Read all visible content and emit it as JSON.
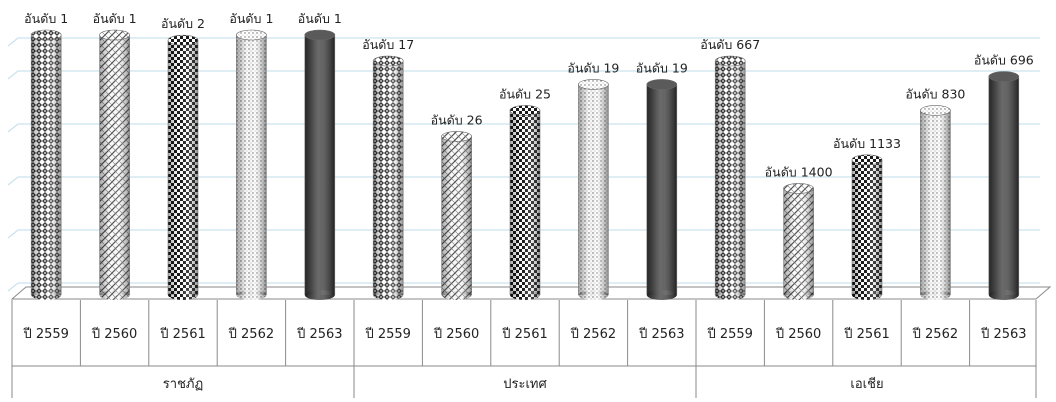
{
  "chart_data": {
    "type": "bar",
    "value_kind": "rank (lower is better; bar height inversely scaled per group)",
    "groups": [
      {
        "name": "ราชภัฏ",
        "categories": [
          "ปี 2559",
          "ปี 2560",
          "ปี 2561",
          "ปี 2562",
          "ปี 2563"
        ],
        "labels": [
          "อันดับ 1",
          "อันดับ 1",
          "อันดับ 2",
          "อันดับ 1",
          "อันดับ 1"
        ],
        "ranks": [
          1,
          1,
          2,
          1,
          1
        ]
      },
      {
        "name": "ประเทศ",
        "categories": [
          "ปี 2559",
          "ปี 2560",
          "ปี 2561",
          "ปี 2562",
          "ปี 2563"
        ],
        "labels": [
          "อันดับ 17",
          "อันดับ 26",
          "อันดับ 25",
          "อันดับ 19",
          "อันดับ 19"
        ],
        "ranks": [
          17,
          26,
          25,
          19,
          19
        ]
      },
      {
        "name": "เอเชีย",
        "categories": [
          "ปี 2559",
          "ปี 2560",
          "ปี 2561",
          "ปี 2562",
          "ปี 2563"
        ],
        "labels": [
          "อันดับ 667",
          "อันดับ 1400",
          "อันดับ 1133",
          "อันดับ 830",
          "อันดับ 696"
        ],
        "ranks": [
          667,
          1400,
          1133,
          830,
          696
        ]
      }
    ],
    "bar_heights_relative": [
      [
        1.0,
        1.0,
        0.98,
        1.0,
        1.0
      ],
      [
        0.9,
        0.61,
        0.71,
        0.81,
        0.81
      ],
      [
        0.9,
        0.41,
        0.52,
        0.71,
        0.84
      ]
    ],
    "series_patterns": [
      "woven",
      "diagonal-stripes",
      "checker",
      "dots",
      "solid"
    ],
    "colors": {
      "gridline": "#c9e3ee",
      "bar_dark": "#4a4a4a",
      "bar_light": "#ffffff",
      "axis": "#8a8a8a",
      "text": "#222222"
    },
    "grid": true,
    "legend": "none"
  }
}
